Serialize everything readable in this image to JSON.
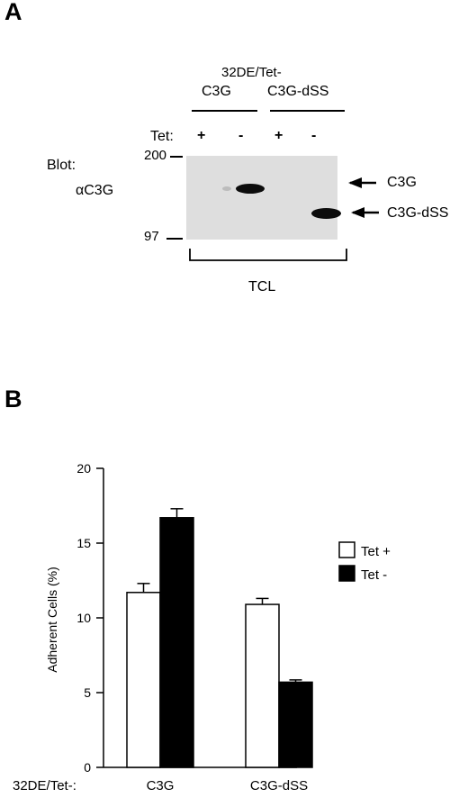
{
  "panel_a": {
    "letter": "A",
    "cell_line": "32DE/Tet-",
    "group_labels": [
      "C3G",
      "C3G-dSS"
    ],
    "tet_label": "Tet:",
    "tet_states": [
      "+",
      "-",
      "+",
      "-"
    ],
    "blot_label": "Blot:",
    "antibody": "αC3G",
    "markers": [
      "200",
      "97"
    ],
    "band_labels": [
      "C3G",
      "C3G-dSS"
    ],
    "lysate_label": "TCL"
  },
  "panel_b": {
    "letter": "B"
  },
  "chart_data": {
    "type": "bar",
    "title": "",
    "xlabel": "32DE/Tet-:",
    "ylabel": "Adherent Cells (%)",
    "categories": [
      "C3G",
      "C3G-dSS"
    ],
    "series": [
      {
        "name": "Tet +",
        "values": [
          11.7,
          10.9
        ],
        "errors": [
          0.6,
          0.4
        ],
        "color": "#ffffff"
      },
      {
        "name": "Tet -",
        "values": [
          16.7,
          5.7
        ],
        "errors": [
          0.6,
          0.15
        ],
        "color": "#000000"
      }
    ],
    "ylim": [
      0,
      20
    ],
    "yticks": [
      "0",
      "5",
      "10",
      "15",
      "20"
    ],
    "grid": false,
    "legend": "right"
  }
}
